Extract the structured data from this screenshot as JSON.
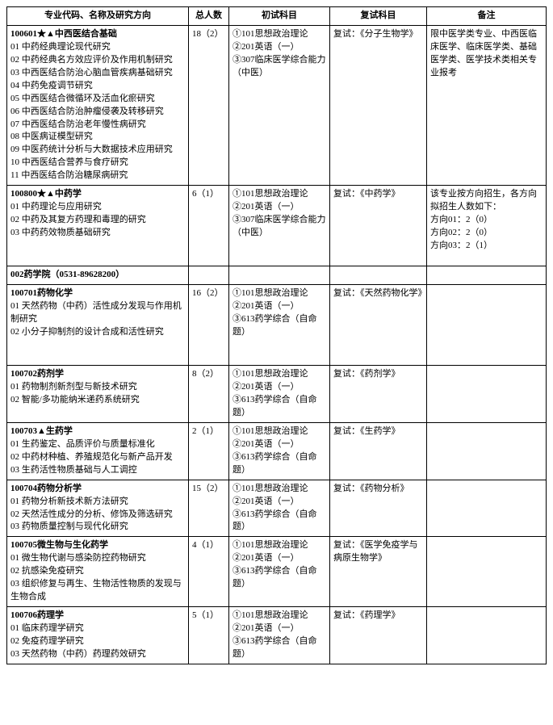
{
  "headers": {
    "col1": "专业代码、名称及研究方向",
    "col2": "总人数",
    "col3": "初试科目",
    "col4": "复试科目",
    "col5": "备注"
  },
  "section": {
    "label": "002药学院（0531-89628200）"
  },
  "rows": [
    {
      "title": "100601★▲中西医结合基础",
      "dirs": [
        "01 中药经典理论现代研究",
        "02 中药经典名方效应评价及作用机制研究",
        "03 中西医结合防治心脑血管疾病基础研究",
        "04 中药免疫调节研究",
        "05 中西医结合微循环及活血化瘀研究",
        "06 中西医结合防治肿瘤侵袭及转移研究",
        "07 中西医结合防治老年慢性病研究",
        "08 中医病证模型研究",
        "09 中医药统计分析与大数据技术应用研究",
        "10 中西医结合营养与食疗研究",
        "11 中西医结合防治糖尿病研究"
      ],
      "count": "18（2）",
      "first": [
        "①101思想政治理论",
        "②201英语（一）",
        "③307临床医学综合能力（中医）"
      ],
      "second": "复试：《分子生物学》",
      "note": "限中医学类专业、中西医临床医学、临床医学类、基础医学类、医学技术类相关专业报考",
      "tall": true
    },
    {
      "title": "100800★▲中药学",
      "dirs": [
        "01 中药理论与应用研究",
        "02 中药及其复方药理和毒理的研究",
        "03 中药药效物质基础研究"
      ],
      "count": "6（1）",
      "first": [
        "①101思想政治理论",
        "②201英语（一）",
        "③307临床医学综合能力（中医）"
      ],
      "second": "复试：《中药学》",
      "note": "该专业按方向招生，各方向拟招生人数如下：\n方向01：2（0）\n方向02：2（0）\n方向03：2（1）",
      "tall": true
    },
    {
      "title": "100701药物化学",
      "dirs": [
        "01 天然药物（中药）活性成分发现与作用机制研究",
        "02 小分子抑制剂的设计合成和活性研究"
      ],
      "count": "16（2）",
      "first": [
        "①101思想政治理论",
        "②201英语（一）",
        "③613药学综合（自命题）"
      ],
      "second": "复试：《天然药物化学》",
      "note": "",
      "tall": true
    },
    {
      "title": "100702药剂学",
      "dirs": [
        "01 药物制剂新剂型与新技术研究",
        "02 智能/多功能纳米递药系统研究"
      ],
      "count": "8（2）",
      "first": [
        "①101思想政治理论",
        "②201英语（一）",
        "③613药学综合（自命题）"
      ],
      "second": "复试：《药剂学》",
      "note": "",
      "tall": false
    },
    {
      "title": "100703▲生药学",
      "dirs": [
        "01 生药鉴定、品质评价与质量标准化",
        "02 中药材种植、养殖规范化与新产品开发",
        "03 生药活性物质基础与人工调控"
      ],
      "count": "2（1）",
      "first": [
        "①101思想政治理论",
        "②201英语（一）",
        "③613药学综合（自命题）"
      ],
      "second": "复试：《生药学》",
      "note": "",
      "tall": false
    },
    {
      "title": "100704药物分析学",
      "dirs": [
        "01 药物分析新技术新方法研究",
        "02 天然活性成分的分析、修饰及筛选研究",
        "03 药物质量控制与现代化研究"
      ],
      "count": "15（2）",
      "first": [
        "①101思想政治理论",
        "②201英语（一）",
        "③613药学综合（自命题）"
      ],
      "second": "复试：《药物分析》",
      "note": "",
      "tall": false
    },
    {
      "title": "100705微生物与生化药学",
      "dirs": [
        "01 微生物代谢与感染防控药物研究",
        "02 抗感染免疫研究",
        "03 组织修复与再生、生物活性物质的发现与生物合成"
      ],
      "count": "4（1）",
      "first": [
        "①101思想政治理论",
        "②201英语（一）",
        "③613药学综合（自命题）"
      ],
      "second": "复试：《医学免疫学与病原生物学》",
      "note": "",
      "tall": false
    },
    {
      "title": "100706药理学",
      "dirs": [
        "01 临床药理学研究",
        "02 免疫药理学研究",
        "03 天然药物（中药）药理药效研究"
      ],
      "count": "5（1）",
      "first": [
        "①101思想政治理论",
        "②201英语（一）",
        "③613药学综合（自命题）"
      ],
      "second": "复试：《药理学》",
      "note": "",
      "tall": false
    }
  ]
}
